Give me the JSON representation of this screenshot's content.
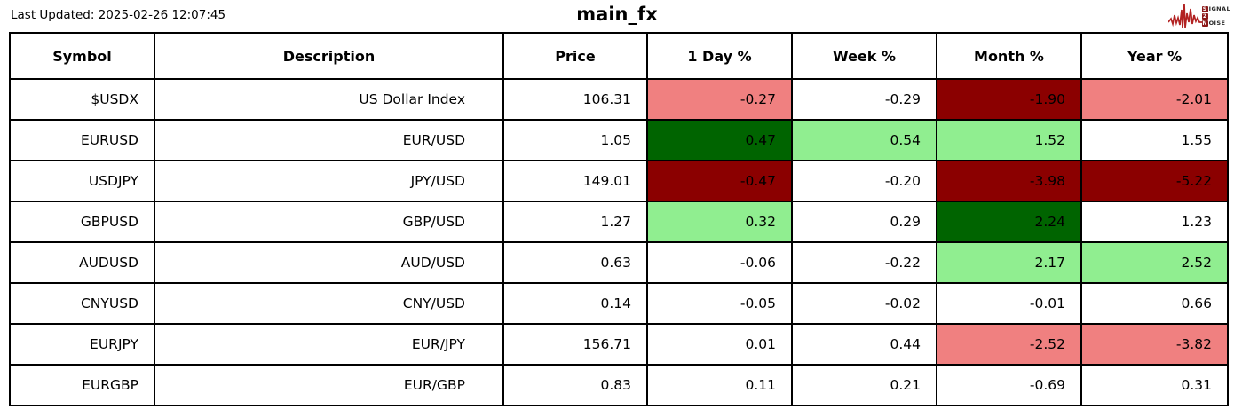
{
  "header": {
    "last_updated": "Last Updated: 2025-02-26 12:07:45",
    "title": "main_fx"
  },
  "logo": {
    "name": "Signal 2 Noise",
    "waveform_color": "#b22222",
    "box_color": "#8b1a1a",
    "lines": [
      {
        "boxed": "S",
        "rest": "IGNAL"
      },
      {
        "boxed": "2",
        "rest": ""
      },
      {
        "boxed": "N",
        "rest": "OISE"
      }
    ]
  },
  "chart_data": {
    "type": "table",
    "title": "main_fx",
    "columns": [
      "Symbol",
      "Description",
      "Price",
      "1 Day %",
      "Week %",
      "Month %",
      "Year %"
    ],
    "fill_colors": {
      "strong_up": "#006400",
      "up": "#90ee90",
      "neutral": "#ffffff",
      "down": "#f08080",
      "strong_down": "#8b0000"
    },
    "rows": [
      {
        "symbol": "$USDX",
        "description": "US Dollar Index",
        "price": "106.31",
        "changes": [
          {
            "period": "1 Day %",
            "value": "-0.27",
            "fill": "down"
          },
          {
            "period": "Week %",
            "value": "-0.29",
            "fill": "neutral"
          },
          {
            "period": "Month %",
            "value": "-1.90",
            "fill": "strong_down"
          },
          {
            "period": "Year %",
            "value": "-2.01",
            "fill": "down"
          }
        ]
      },
      {
        "symbol": "EURUSD",
        "description": "EUR/USD",
        "price": "1.05",
        "changes": [
          {
            "period": "1 Day %",
            "value": "0.47",
            "fill": "strong_up"
          },
          {
            "period": "Week %",
            "value": "0.54",
            "fill": "up"
          },
          {
            "period": "Month %",
            "value": "1.52",
            "fill": "up"
          },
          {
            "period": "Year %",
            "value": "1.55",
            "fill": "neutral"
          }
        ]
      },
      {
        "symbol": "USDJPY",
        "description": "JPY/USD",
        "price": "149.01",
        "changes": [
          {
            "period": "1 Day %",
            "value": "-0.47",
            "fill": "strong_down"
          },
          {
            "period": "Week %",
            "value": "-0.20",
            "fill": "neutral"
          },
          {
            "period": "Month %",
            "value": "-3.98",
            "fill": "strong_down"
          },
          {
            "period": "Year %",
            "value": "-5.22",
            "fill": "strong_down"
          }
        ]
      },
      {
        "symbol": "GBPUSD",
        "description": "GBP/USD",
        "price": "1.27",
        "changes": [
          {
            "period": "1 Day %",
            "value": "0.32",
            "fill": "up"
          },
          {
            "period": "Week %",
            "value": "0.29",
            "fill": "neutral"
          },
          {
            "period": "Month %",
            "value": "2.24",
            "fill": "strong_up"
          },
          {
            "period": "Year %",
            "value": "1.23",
            "fill": "neutral"
          }
        ]
      },
      {
        "symbol": "AUDUSD",
        "description": "AUD/USD",
        "price": "0.63",
        "changes": [
          {
            "period": "1 Day %",
            "value": "-0.06",
            "fill": "neutral"
          },
          {
            "period": "Week %",
            "value": "-0.22",
            "fill": "neutral"
          },
          {
            "period": "Month %",
            "value": "2.17",
            "fill": "up"
          },
          {
            "period": "Year %",
            "value": "2.52",
            "fill": "up"
          }
        ]
      },
      {
        "symbol": "CNYUSD",
        "description": "CNY/USD",
        "price": "0.14",
        "changes": [
          {
            "period": "1 Day %",
            "value": "-0.05",
            "fill": "neutral"
          },
          {
            "period": "Week %",
            "value": "-0.02",
            "fill": "neutral"
          },
          {
            "period": "Month %",
            "value": "-0.01",
            "fill": "neutral"
          },
          {
            "period": "Year %",
            "value": "0.66",
            "fill": "neutral"
          }
        ]
      },
      {
        "symbol": "EURJPY",
        "description": "EUR/JPY",
        "price": "156.71",
        "changes": [
          {
            "period": "1 Day %",
            "value": "0.01",
            "fill": "neutral"
          },
          {
            "period": "Week %",
            "value": "0.44",
            "fill": "neutral"
          },
          {
            "period": "Month %",
            "value": "-2.52",
            "fill": "down"
          },
          {
            "period": "Year %",
            "value": "-3.82",
            "fill": "down"
          }
        ]
      },
      {
        "symbol": "EURGBP",
        "description": "EUR/GBP",
        "price": "0.83",
        "changes": [
          {
            "period": "1 Day %",
            "value": "0.11",
            "fill": "neutral"
          },
          {
            "period": "Week %",
            "value": "0.21",
            "fill": "neutral"
          },
          {
            "period": "Month %",
            "value": "-0.69",
            "fill": "neutral"
          },
          {
            "period": "Year %",
            "value": "0.31",
            "fill": "neutral"
          }
        ]
      }
    ]
  }
}
